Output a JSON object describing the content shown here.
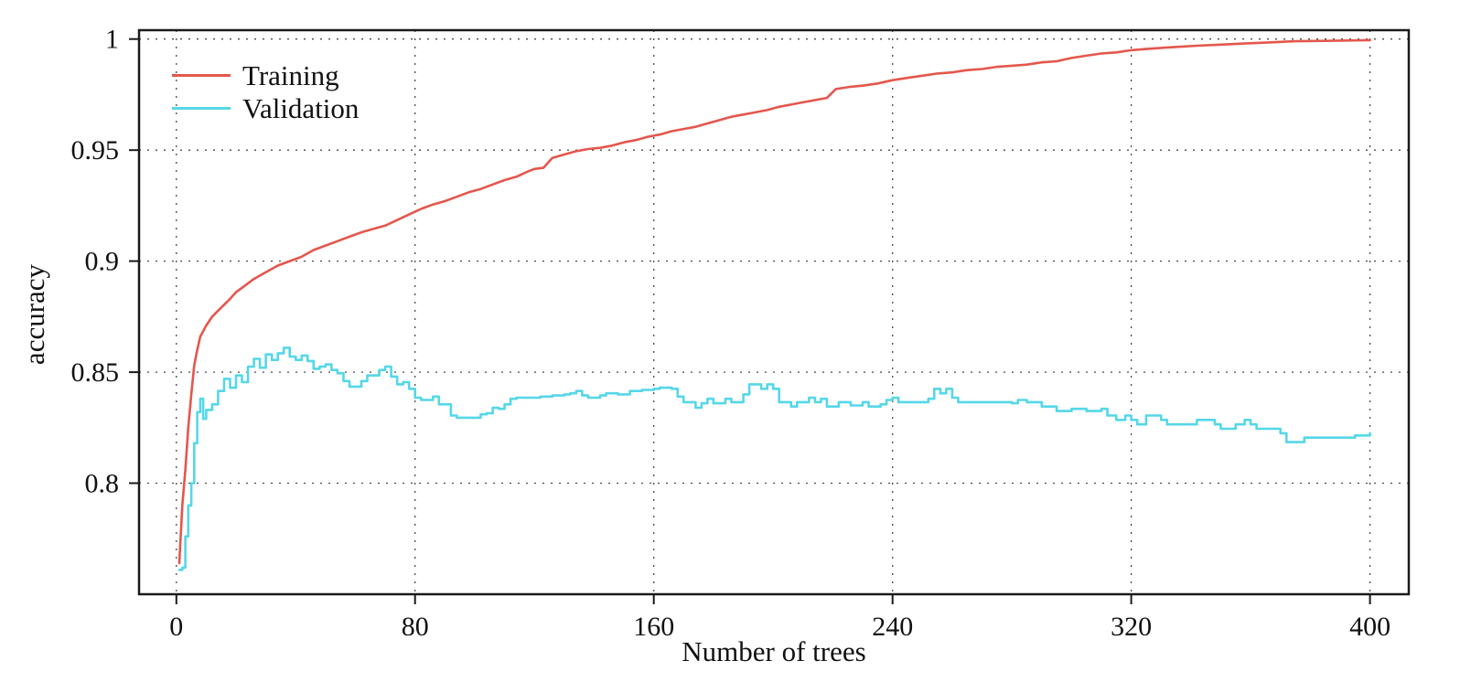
{
  "chart_data": {
    "type": "line",
    "title": "",
    "xlabel": "Number of trees",
    "ylabel": "accuracy",
    "xlim": [
      -12.5,
      413
    ],
    "ylim": [
      0.75,
      1.004
    ],
    "x_ticks": [
      0,
      80,
      160,
      240,
      320,
      400
    ],
    "x_tick_labels": [
      "0",
      "80",
      "160",
      "240",
      "320",
      "400"
    ],
    "y_ticks": [
      0.8,
      0.85,
      0.9,
      0.95,
      1
    ],
    "y_tick_labels": [
      "0.8",
      "0.85",
      "0.9",
      "0.95",
      "1"
    ],
    "grid": "dotted",
    "grid_color": "#4a4a4a",
    "axis_color": "#1a1a1a",
    "legend_position": "top-left",
    "series": [
      {
        "name": "Training",
        "color": "#e4574d",
        "step": false,
        "points": [
          [
            1,
            0.764
          ],
          [
            2,
            0.79
          ],
          [
            3,
            0.806
          ],
          [
            4,
            0.825
          ],
          [
            5,
            0.84
          ],
          [
            6,
            0.853
          ],
          [
            7,
            0.86
          ],
          [
            8,
            0.866
          ],
          [
            10,
            0.871
          ],
          [
            12,
            0.875
          ],
          [
            15,
            0.879
          ],
          [
            18,
            0.883
          ],
          [
            20,
            0.886
          ],
          [
            23,
            0.889
          ],
          [
            26,
            0.892
          ],
          [
            30,
            0.895
          ],
          [
            34,
            0.898
          ],
          [
            38,
            0.9
          ],
          [
            42,
            0.902
          ],
          [
            46,
            0.905
          ],
          [
            50,
            0.907
          ],
          [
            54,
            0.909
          ],
          [
            58,
            0.911
          ],
          [
            62,
            0.913
          ],
          [
            66,
            0.9145
          ],
          [
            70,
            0.916
          ],
          [
            74,
            0.9185
          ],
          [
            78,
            0.921
          ],
          [
            82,
            0.9235
          ],
          [
            86,
            0.9255
          ],
          [
            90,
            0.927
          ],
          [
            94,
            0.929
          ],
          [
            98,
            0.931
          ],
          [
            102,
            0.9325
          ],
          [
            106,
            0.9345
          ],
          [
            110,
            0.9365
          ],
          [
            114,
            0.938
          ],
          [
            118,
            0.9405
          ],
          [
            120,
            0.9415
          ],
          [
            123,
            0.942
          ],
          [
            126,
            0.9465
          ],
          [
            130,
            0.948
          ],
          [
            134,
            0.9495
          ],
          [
            138,
            0.9505
          ],
          [
            142,
            0.951
          ],
          [
            146,
            0.952
          ],
          [
            150,
            0.9535
          ],
          [
            154,
            0.9545
          ],
          [
            158,
            0.956
          ],
          [
            162,
            0.957
          ],
          [
            166,
            0.9585
          ],
          [
            170,
            0.9595
          ],
          [
            174,
            0.9605
          ],
          [
            178,
            0.962
          ],
          [
            182,
            0.9635
          ],
          [
            186,
            0.965
          ],
          [
            190,
            0.966
          ],
          [
            194,
            0.967
          ],
          [
            198,
            0.968
          ],
          [
            202,
            0.9695
          ],
          [
            206,
            0.9705
          ],
          [
            210,
            0.9715
          ],
          [
            214,
            0.9725
          ],
          [
            218,
            0.9735
          ],
          [
            221,
            0.9775
          ],
          [
            226,
            0.9785
          ],
          [
            230,
            0.979
          ],
          [
            235,
            0.98
          ],
          [
            240,
            0.9815
          ],
          [
            245,
            0.9825
          ],
          [
            250,
            0.9835
          ],
          [
            255,
            0.9845
          ],
          [
            260,
            0.985
          ],
          [
            265,
            0.986
          ],
          [
            270,
            0.9865
          ],
          [
            275,
            0.9875
          ],
          [
            280,
            0.988
          ],
          [
            285,
            0.9885
          ],
          [
            290,
            0.9895
          ],
          [
            295,
            0.99
          ],
          [
            300,
            0.9915
          ],
          [
            305,
            0.9925
          ],
          [
            310,
            0.9935
          ],
          [
            315,
            0.994
          ],
          [
            320,
            0.995
          ],
          [
            325,
            0.9955
          ],
          [
            330,
            0.996
          ],
          [
            336,
            0.9965
          ],
          [
            342,
            0.997
          ],
          [
            350,
            0.9975
          ],
          [
            358,
            0.998
          ],
          [
            366,
            0.9985
          ],
          [
            375,
            0.999
          ],
          [
            385,
            0.9992
          ],
          [
            400,
            0.9995
          ]
        ]
      },
      {
        "name": "Validation",
        "color": "#55d7e8",
        "step": true,
        "points": [
          [
            1,
            0.761
          ],
          [
            2,
            0.762
          ],
          [
            3,
            0.776
          ],
          [
            4,
            0.79
          ],
          [
            5,
            0.8
          ],
          [
            6,
            0.818
          ],
          [
            7,
            0.832
          ],
          [
            8,
            0.838
          ],
          [
            9,
            0.829
          ],
          [
            10,
            0.833
          ],
          [
            12,
            0.8355
          ],
          [
            14,
            0.8415
          ],
          [
            16,
            0.847
          ],
          [
            18,
            0.843
          ],
          [
            20,
            0.8485
          ],
          [
            22,
            0.8455
          ],
          [
            24,
            0.8525
          ],
          [
            26,
            0.856
          ],
          [
            28,
            0.852
          ],
          [
            30,
            0.858
          ],
          [
            32,
            0.8555
          ],
          [
            34,
            0.8585
          ],
          [
            36,
            0.861
          ],
          [
            38,
            0.857
          ],
          [
            40,
            0.8555
          ],
          [
            42,
            0.8575
          ],
          [
            44,
            0.855
          ],
          [
            46,
            0.8515
          ],
          [
            48,
            0.8525
          ],
          [
            50,
            0.8535
          ],
          [
            52,
            0.851
          ],
          [
            54,
            0.8495
          ],
          [
            56,
            0.846
          ],
          [
            58,
            0.8435
          ],
          [
            60,
            0.8435
          ],
          [
            62,
            0.846
          ],
          [
            64,
            0.8485
          ],
          [
            66,
            0.8485
          ],
          [
            68,
            0.851
          ],
          [
            70,
            0.8525
          ],
          [
            72,
            0.848
          ],
          [
            74,
            0.8445
          ],
          [
            76,
            0.8455
          ],
          [
            78,
            0.8425
          ],
          [
            80,
            0.8385
          ],
          [
            82,
            0.8375
          ],
          [
            84,
            0.8375
          ],
          [
            86,
            0.839
          ],
          [
            88,
            0.8355
          ],
          [
            90,
            0.8355
          ],
          [
            92,
            0.8305
          ],
          [
            94,
            0.8295
          ],
          [
            96,
            0.8295
          ],
          [
            98,
            0.8295
          ],
          [
            100,
            0.8295
          ],
          [
            102,
            0.831
          ],
          [
            104,
            0.8315
          ],
          [
            106,
            0.834
          ],
          [
            108,
            0.8335
          ],
          [
            110,
            0.8355
          ],
          [
            112,
            0.838
          ],
          [
            114,
            0.8385
          ],
          [
            118,
            0.8385
          ],
          [
            122,
            0.839
          ],
          [
            126,
            0.8395
          ],
          [
            130,
            0.84
          ],
          [
            132,
            0.8405
          ],
          [
            134,
            0.8415
          ],
          [
            136,
            0.8395
          ],
          [
            138,
            0.8385
          ],
          [
            140,
            0.8385
          ],
          [
            142,
            0.8395
          ],
          [
            144,
            0.8405
          ],
          [
            148,
            0.84
          ],
          [
            152,
            0.8415
          ],
          [
            156,
            0.842
          ],
          [
            160,
            0.8425
          ],
          [
            162,
            0.843
          ],
          [
            166,
            0.8425
          ],
          [
            168,
            0.839
          ],
          [
            170,
            0.8365
          ],
          [
            172,
            0.8365
          ],
          [
            174,
            0.834
          ],
          [
            176,
            0.836
          ],
          [
            178,
            0.838
          ],
          [
            180,
            0.836
          ],
          [
            184,
            0.838
          ],
          [
            186,
            0.8365
          ],
          [
            188,
            0.8365
          ],
          [
            190,
            0.84
          ],
          [
            192,
            0.8445
          ],
          [
            194,
            0.8445
          ],
          [
            196,
            0.8425
          ],
          [
            198,
            0.8445
          ],
          [
            200,
            0.8425
          ],
          [
            202,
            0.8365
          ],
          [
            204,
            0.8365
          ],
          [
            206,
            0.8345
          ],
          [
            208,
            0.8365
          ],
          [
            212,
            0.8385
          ],
          [
            214,
            0.8365
          ],
          [
            216,
            0.838
          ],
          [
            218,
            0.8345
          ],
          [
            220,
            0.8345
          ],
          [
            222,
            0.8365
          ],
          [
            226,
            0.835
          ],
          [
            230,
            0.8365
          ],
          [
            232,
            0.8345
          ],
          [
            236,
            0.8355
          ],
          [
            238,
            0.8375
          ],
          [
            240,
            0.8385
          ],
          [
            242,
            0.8365
          ],
          [
            248,
            0.8365
          ],
          [
            252,
            0.838
          ],
          [
            254,
            0.8425
          ],
          [
            256,
            0.8405
          ],
          [
            258,
            0.8425
          ],
          [
            260,
            0.8385
          ],
          [
            262,
            0.8365
          ],
          [
            268,
            0.8365
          ],
          [
            275,
            0.8365
          ],
          [
            280,
            0.836
          ],
          [
            282,
            0.8375
          ],
          [
            285,
            0.8365
          ],
          [
            288,
            0.8365
          ],
          [
            290,
            0.8345
          ],
          [
            295,
            0.8325
          ],
          [
            298,
            0.8325
          ],
          [
            300,
            0.8335
          ],
          [
            305,
            0.8325
          ],
          [
            310,
            0.8335
          ],
          [
            312,
            0.8305
          ],
          [
            315,
            0.8285
          ],
          [
            318,
            0.8305
          ],
          [
            320,
            0.8285
          ],
          [
            322,
            0.8265
          ],
          [
            325,
            0.8305
          ],
          [
            328,
            0.8305
          ],
          [
            330,
            0.8285
          ],
          [
            332,
            0.8265
          ],
          [
            338,
            0.8265
          ],
          [
            342,
            0.8285
          ],
          [
            345,
            0.8285
          ],
          [
            348,
            0.8265
          ],
          [
            350,
            0.8245
          ],
          [
            355,
            0.8265
          ],
          [
            358,
            0.8285
          ],
          [
            360,
            0.8265
          ],
          [
            362,
            0.8245
          ],
          [
            368,
            0.8245
          ],
          [
            370,
            0.8225
          ],
          [
            372,
            0.8185
          ],
          [
            375,
            0.8185
          ],
          [
            378,
            0.8205
          ],
          [
            385,
            0.8205
          ],
          [
            390,
            0.8205
          ],
          [
            395,
            0.8215
          ],
          [
            400,
            0.8225
          ]
        ]
      }
    ]
  }
}
